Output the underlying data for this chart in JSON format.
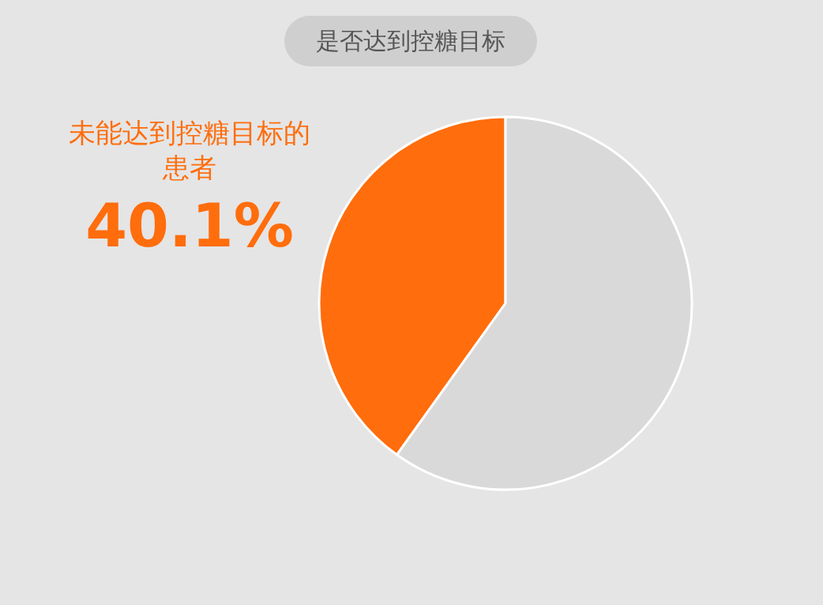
{
  "chart_data": {
    "type": "pie",
    "title": "是否达到控糖目标",
    "categories": [
      "未能达到控糖目标的患者",
      null
    ],
    "values": [
      40.1,
      59.9
    ],
    "colors": [
      "#ff6d0c",
      "#d9d9d9"
    ],
    "value_labels": [
      "40.1%",
      null
    ]
  }
}
